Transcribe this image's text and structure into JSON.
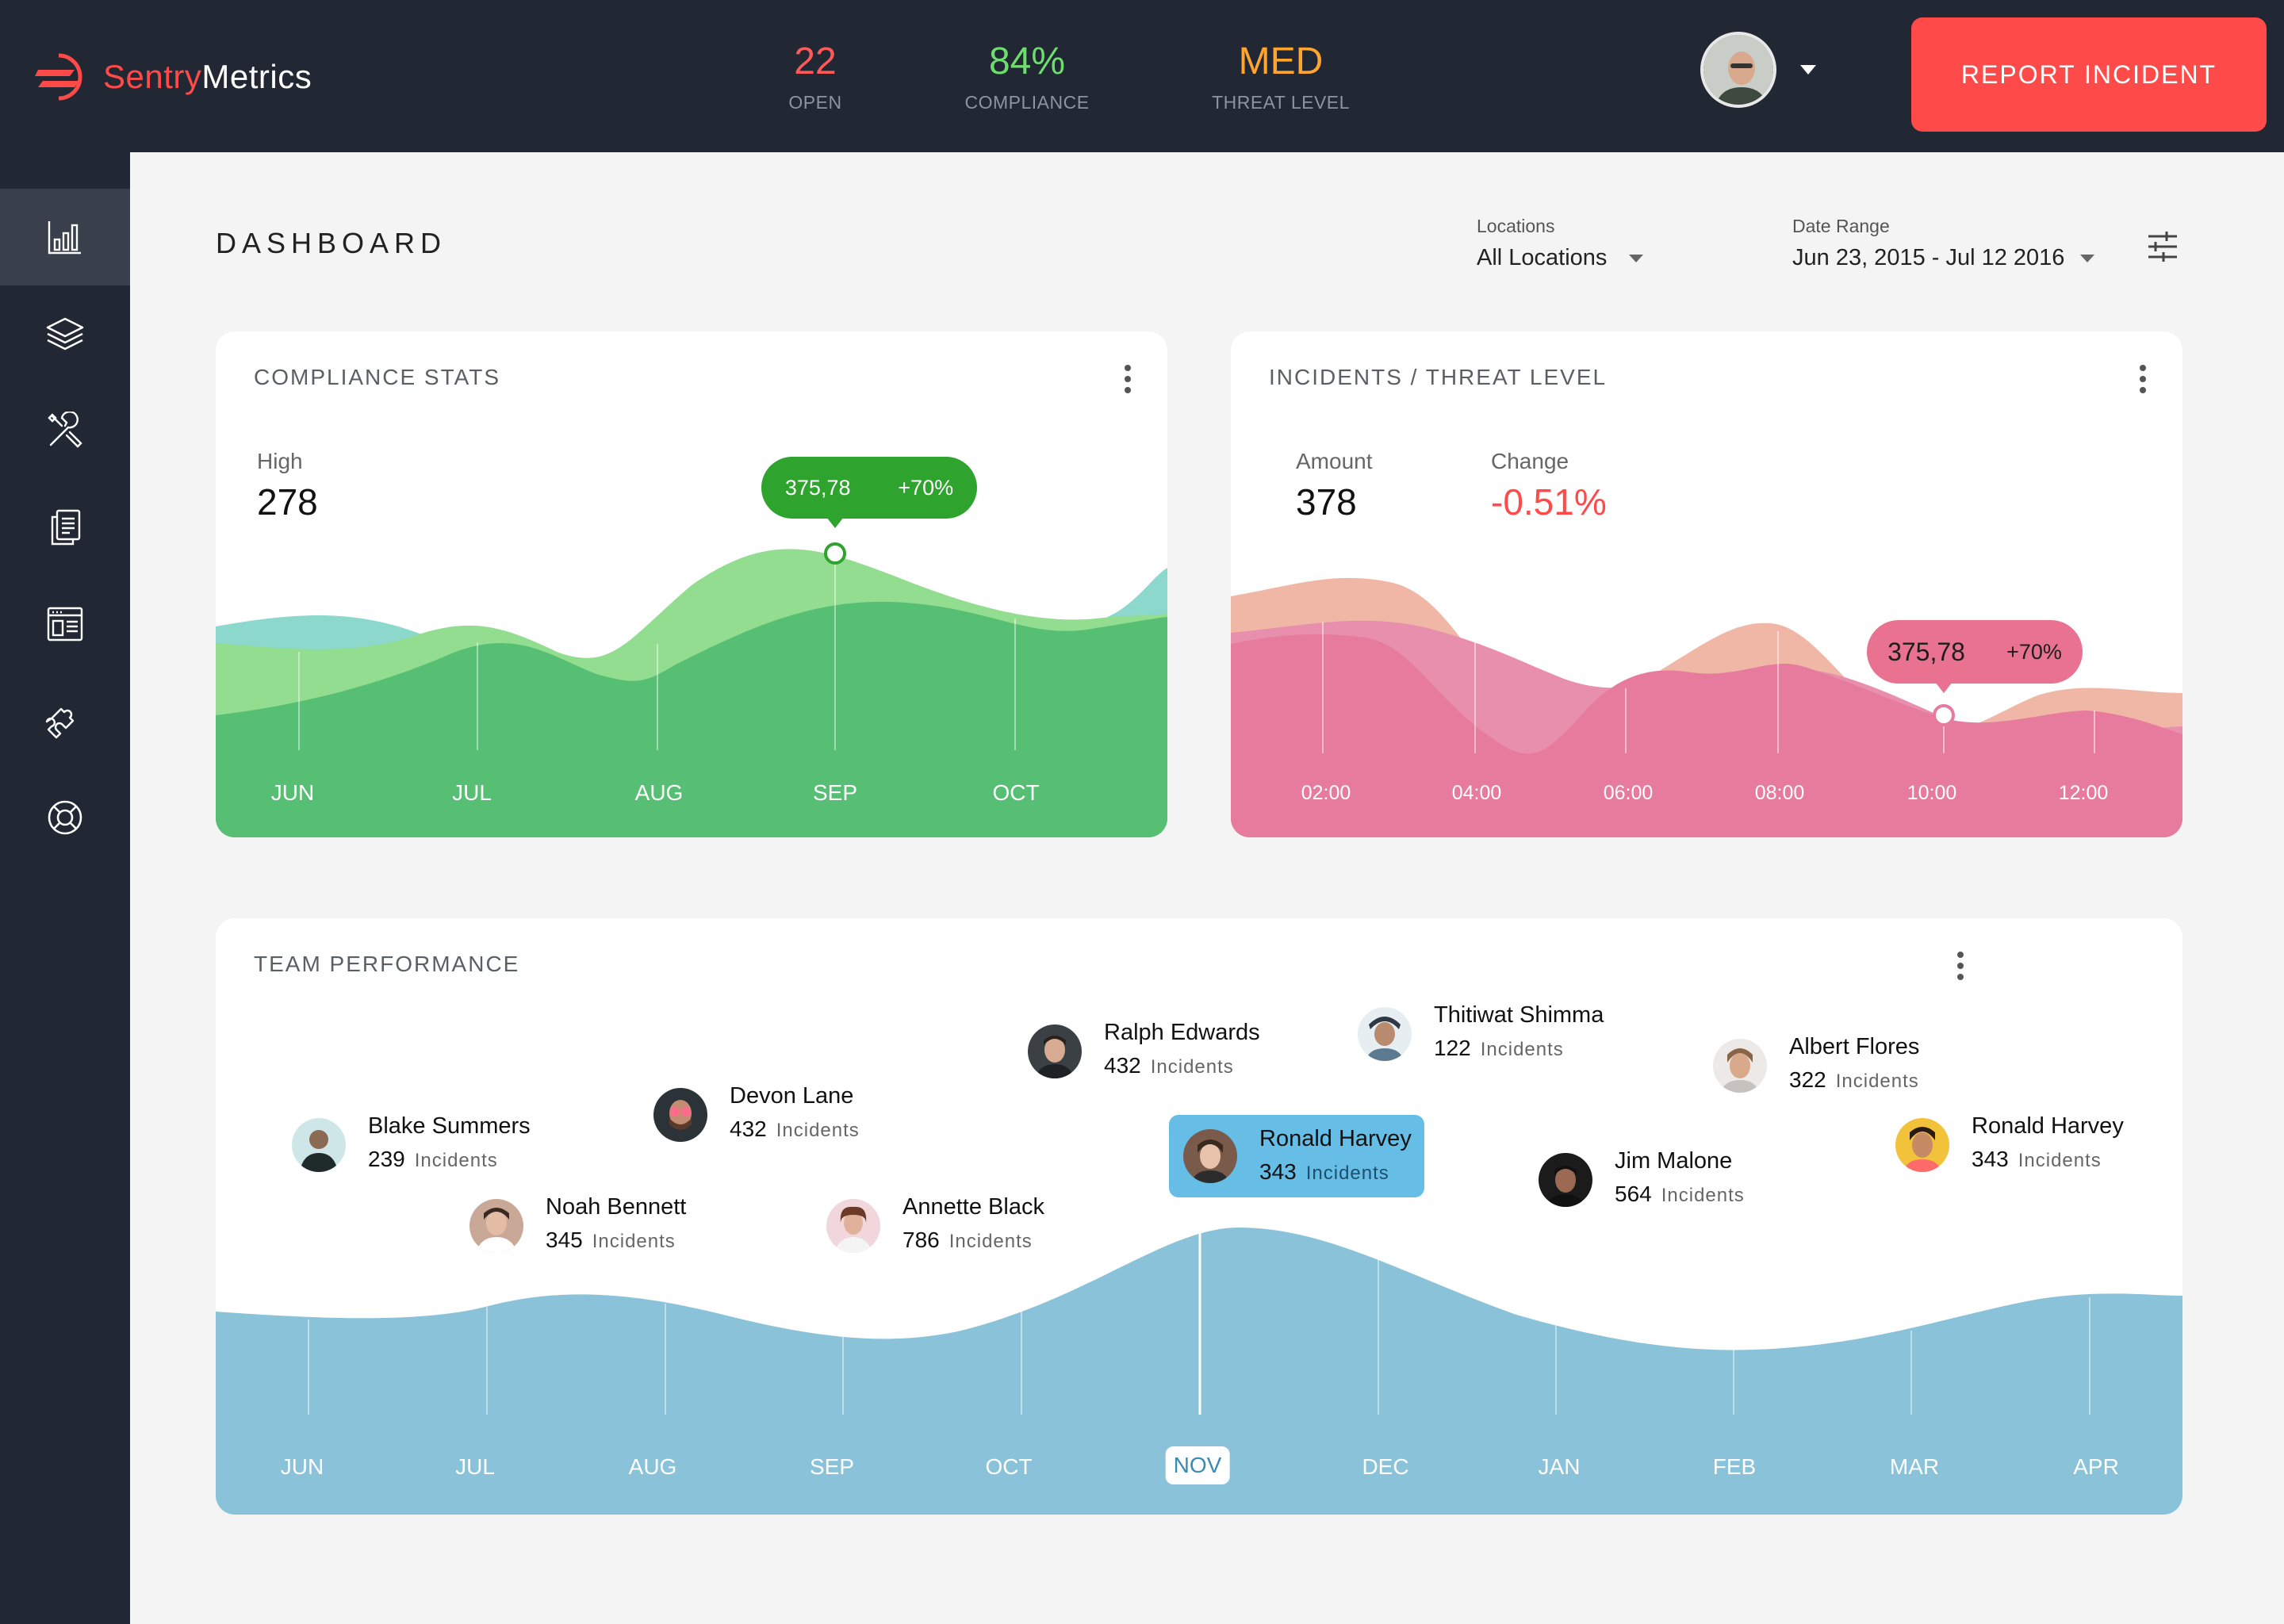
{
  "brand": {
    "name_part1": "Sentry",
    "name_part2": "Metrics",
    "accent": "#ff4a4a"
  },
  "top_stats": [
    {
      "value": "22",
      "label": "OPEN",
      "color": "#ff5a5a"
    },
    {
      "value": "84%",
      "label": "COMPLIANCE",
      "color": "#6fdc6f"
    },
    {
      "value": "MED",
      "label": "THREAT LEVEL",
      "color": "#ffa530"
    }
  ],
  "user": {
    "avatar_icon": "user-avatar"
  },
  "actions": {
    "report_incident": "REPORT INCIDENT"
  },
  "sidebar": {
    "items": [
      {
        "icon": "bar-chart-icon",
        "active": true
      },
      {
        "icon": "layers-icon",
        "active": false
      },
      {
        "icon": "tools-icon",
        "active": false
      },
      {
        "icon": "documents-icon",
        "active": false
      },
      {
        "icon": "browser-window-icon",
        "active": false
      },
      {
        "icon": "puzzle-icon",
        "active": false
      },
      {
        "icon": "lifebuoy-icon",
        "active": false
      }
    ]
  },
  "header": {
    "title": "DASHBOARD",
    "locations": {
      "label": "Locations",
      "value": "All Locations"
    },
    "date_range": {
      "label": "Date Range",
      "value": "Jun 23, 2015 - Jul 12 2016"
    }
  },
  "compliance": {
    "title": "COMPLIANCE STATS",
    "metric_label": "High",
    "metric_value": "278",
    "tooltip_value": "375,78",
    "tooltip_change": "+70%"
  },
  "incidents": {
    "title": "INCIDENTS / THREAT LEVEL",
    "amount_label": "Amount",
    "amount_value": "378",
    "change_label": "Change",
    "change_value": "-0.51%",
    "tooltip_value": "375,78",
    "tooltip_change": "+70%"
  },
  "team": {
    "title": "TEAM PERFORMANCE",
    "incidents_word": "Incidents",
    "people": [
      {
        "name": "Blake Summers",
        "count": "239"
      },
      {
        "name": "Noah Bennett",
        "count": "345"
      },
      {
        "name": "Devon Lane",
        "count": "432"
      },
      {
        "name": "Annette Black",
        "count": "786"
      },
      {
        "name": "Ralph Edwards",
        "count": "432"
      },
      {
        "name": "Ronald Harvey",
        "count": "343"
      },
      {
        "name": "Thitiwat Shimma",
        "count": "122"
      },
      {
        "name": "Jim Malone",
        "count": "564"
      },
      {
        "name": "Albert Flores",
        "count": "322"
      },
      {
        "name": "Ronald Harvey",
        "count": "343"
      }
    ],
    "selected_month": "NOV"
  },
  "chart_data": [
    {
      "type": "area",
      "title": "COMPLIANCE STATS",
      "categories": [
        "JUN",
        "JUL",
        "AUG",
        "SEP",
        "OCT"
      ],
      "colors": {
        "back": "#92dd8f",
        "teal": "#8dd8cc",
        "front": "#57bf73"
      }
    },
    {
      "type": "area",
      "title": "INCIDENTS / THREAT LEVEL",
      "categories": [
        "02:00",
        "04:00",
        "06:00",
        "08:00",
        "10:00",
        "12:00"
      ],
      "colors": {
        "back": "#f0b7a6",
        "mid": "#e88fad",
        "front": "#e77b9d"
      }
    },
    {
      "type": "area",
      "title": "TEAM PERFORMANCE",
      "categories": [
        "JUN",
        "JUL",
        "AUG",
        "SEP",
        "OCT",
        "NOV",
        "DEC",
        "JAN",
        "FEB",
        "MAR",
        "APR"
      ],
      "colors": {
        "fill": "#8ac2d9"
      }
    }
  ]
}
